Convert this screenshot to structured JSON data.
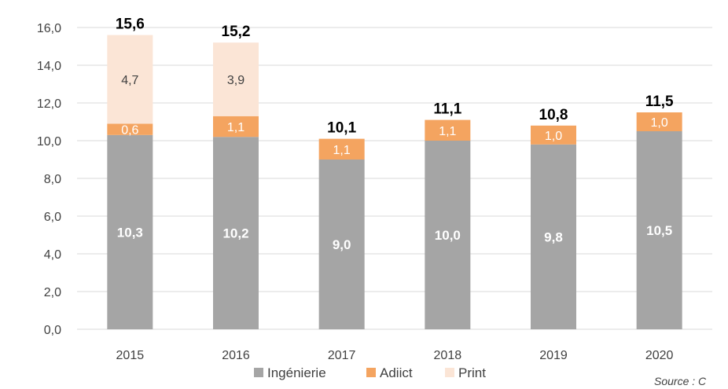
{
  "chart_data": {
    "type": "bar",
    "stacked": true,
    "categories": [
      "2015",
      "2016",
      "2017",
      "2018",
      "2019",
      "2020"
    ],
    "series": [
      {
        "name": "Ingénierie",
        "color": "#a5a5a5",
        "label_color": "#ffffff",
        "label_bold": true,
        "values": [
          10.3,
          10.2,
          9.0,
          10.0,
          9.8,
          10.5
        ],
        "labels": [
          "10,3",
          "10,2",
          "9,0",
          "10,0",
          "9,8",
          "10,5"
        ]
      },
      {
        "name": "Adiict",
        "color": "#f4a460",
        "label_color": "#ffffff",
        "label_bold": false,
        "values": [
          0.6,
          1.1,
          1.1,
          1.1,
          1.0,
          1.0
        ],
        "labels": [
          "0,6",
          "1,1",
          "1,1",
          "1,1",
          "1,0",
          "1,0"
        ]
      },
      {
        "name": "Print",
        "color": "#fbe5d6",
        "label_color": "#404040",
        "label_bold": false,
        "values": [
          4.7,
          3.9,
          null,
          null,
          null,
          null
        ],
        "labels": [
          "4,7",
          "3,9",
          "",
          "",
          "",
          ""
        ]
      }
    ],
    "totals": [
      "15,6",
      "15,2",
      "10,1",
      "11,1",
      "10,8",
      "11,5"
    ],
    "y_ticks": [
      "0,0",
      "2,0",
      "4,0",
      "6,0",
      "8,0",
      "10,0",
      "12,0",
      "14,0",
      "16,0"
    ],
    "ylim": [
      0,
      16
    ],
    "grid": true,
    "legend_position": "bottom",
    "xlabel": "",
    "ylabel": "",
    "title": ""
  },
  "source_text": "Source : C"
}
